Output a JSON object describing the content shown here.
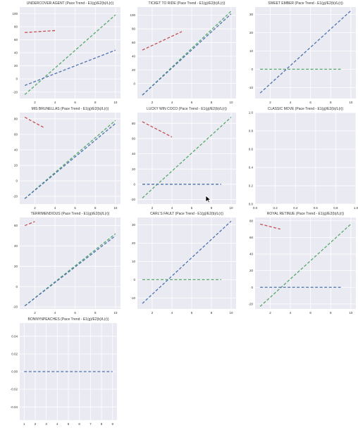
{
  "chart_data": [
    {
      "type": "line",
      "title": "UNDERCOVER AGENT (Pace Trend - E1(g)/E2(b)/L(r))",
      "xlim": [
        0.5,
        10.5
      ],
      "ylim": [
        -30,
        110
      ],
      "xticks": [
        "2",
        "4",
        "6",
        "8",
        "10"
      ],
      "yticks": [
        "-20",
        "0",
        "20",
        "40",
        "60",
        "80",
        "100"
      ],
      "series": [
        {
          "color": "#c44e52",
          "x": [
            1,
            4
          ],
          "y": [
            71,
            74
          ]
        },
        {
          "color": "#55a868",
          "x": [
            1,
            10
          ],
          "y": [
            -24,
            98
          ]
        },
        {
          "color": "#4c72b0",
          "x": [
            1,
            10
          ],
          "y": [
            -10,
            44
          ]
        }
      ]
    },
    {
      "type": "line",
      "title": "TICKET TO RIDE (Pace Trend - E1(g)/E2(b)/L(r))",
      "xlim": [
        0.5,
        10.5
      ],
      "ylim": [
        -22,
        112
      ],
      "xticks": [
        "2",
        "4",
        "6",
        "8",
        "10"
      ],
      "yticks": [
        "0",
        "20",
        "40",
        "60",
        "80",
        "100"
      ],
      "series": [
        {
          "color": "#c44e52",
          "x": [
            1,
            5
          ],
          "y": [
            49,
            76
          ]
        },
        {
          "color": "#55a868",
          "x": [
            1,
            10
          ],
          "y": [
            -17,
            106
          ]
        },
        {
          "color": "#4c72b0",
          "x": [
            1,
            10
          ],
          "y": [
            -17,
            102
          ]
        }
      ]
    },
    {
      "type": "line",
      "title": "SWEET EMBER (Pace Trend - E1(g)/E2(b)/L(r))",
      "xlim": [
        0.5,
        10.5
      ],
      "ylim": [
        -16,
        34
      ],
      "xticks": [
        "2",
        "4",
        "6",
        "8",
        "10"
      ],
      "yticks": [
        "-10",
        "0",
        "10",
        "20",
        "30"
      ],
      "series": [
        {
          "color": "#55a868",
          "x": [
            1,
            9
          ],
          "y": [
            0,
            0
          ]
        },
        {
          "color": "#4c72b0",
          "x": [
            1,
            10
          ],
          "y": [
            -13,
            32
          ]
        }
      ]
    },
    {
      "type": "line",
      "title": "MIS BRUNELLAS (Pace Trend - E1(g)/E2(b)/L(r))",
      "xlim": [
        0.5,
        10.5
      ],
      "ylim": [
        -30,
        88
      ],
      "xticks": [
        "2",
        "4",
        "6",
        "8",
        "10"
      ],
      "yticks": [
        "-20",
        "0",
        "20",
        "40",
        "60",
        "80"
      ],
      "series": [
        {
          "color": "#c44e52",
          "x": [
            1,
            3
          ],
          "y": [
            82,
            68
          ]
        },
        {
          "color": "#55a868",
          "x": [
            1,
            10
          ],
          "y": [
            -23,
            78
          ]
        },
        {
          "color": "#4c72b0",
          "x": [
            1,
            10
          ],
          "y": [
            -23,
            74
          ]
        }
      ]
    },
    {
      "type": "line",
      "title": "LUCKY WIN COCO (Pace Trend - E1(g)/E2(b)/L(r))",
      "xlim": [
        0.5,
        10.5
      ],
      "ylim": [
        -26,
        94
      ],
      "xticks": [
        "2",
        "4",
        "6",
        "8",
        "10"
      ],
      "yticks": [
        "-20",
        "0",
        "20",
        "40",
        "60",
        "80"
      ],
      "series": [
        {
          "color": "#c44e52",
          "x": [
            1,
            4
          ],
          "y": [
            82,
            62
          ]
        },
        {
          "color": "#55a868",
          "x": [
            1,
            10
          ],
          "y": [
            -18,
            88
          ]
        },
        {
          "color": "#4c72b0",
          "x": [
            1,
            9
          ],
          "y": [
            0,
            0
          ]
        }
      ]
    },
    {
      "type": "line",
      "title": "CLASSIC MOVE (Pace Trend - E1(g)/E2(b)/L(r))",
      "xlim": [
        0,
        1
      ],
      "ylim": [
        0,
        1
      ],
      "xticks": [
        "0.0",
        "0.2",
        "0.4",
        "0.6",
        "0.8",
        "1.0"
      ],
      "yticks": [
        "0.0",
        "0.2",
        "0.4",
        "0.6",
        "0.8",
        "1.0"
      ],
      "series": []
    },
    {
      "type": "line",
      "title": "TERRIMENDIOUS (Pace Trend - E1(g)/E2(b)/L(r))",
      "xlim": [
        0.5,
        10.5
      ],
      "ylim": [
        -22,
        68
      ],
      "xticks": [
        "2",
        "4",
        "6",
        "8",
        "10"
      ],
      "yticks": [
        "-20",
        "0",
        "20",
        "40",
        "60"
      ],
      "series": [
        {
          "color": "#c44e52",
          "x": [
            1,
            2
          ],
          "y": [
            60,
            64
          ]
        },
        {
          "color": "#55a868",
          "x": [
            1,
            10
          ],
          "y": [
            -19,
            52
          ]
        },
        {
          "color": "#4c72b0",
          "x": [
            1,
            10
          ],
          "y": [
            -19,
            50
          ]
        }
      ]
    },
    {
      "type": "line",
      "title": "CARL'S FAULT (Pace Trend - E1(g)/E2(b)/L(r))",
      "xlim": [
        0.5,
        10.5
      ],
      "ylim": [
        -16,
        34
      ],
      "xticks": [
        "2",
        "4",
        "6",
        "8",
        "10"
      ],
      "yticks": [
        "-10",
        "0",
        "10",
        "20",
        "30"
      ],
      "series": [
        {
          "color": "#55a868",
          "x": [
            1,
            9
          ],
          "y": [
            0,
            0
          ]
        },
        {
          "color": "#4c72b0",
          "x": [
            1,
            10
          ],
          "y": [
            -13,
            32
          ]
        }
      ]
    },
    {
      "type": "line",
      "title": "ROYAL RETINUE (Pace Trend - E1(g)/E2(b)/L(r))",
      "xlim": [
        0.5,
        10.5
      ],
      "ylim": [
        -26,
        84
      ],
      "xticks": [
        "2",
        "4",
        "6",
        "8",
        "10"
      ],
      "yticks": [
        "-20",
        "0",
        "20",
        "40",
        "60",
        "80"
      ],
      "series": [
        {
          "color": "#c44e52",
          "x": [
            1,
            3
          ],
          "y": [
            76,
            70
          ]
        },
        {
          "color": "#55a868",
          "x": [
            1,
            10
          ],
          "y": [
            -23,
            76
          ]
        },
        {
          "color": "#4c72b0",
          "x": [
            1,
            9
          ],
          "y": [
            0,
            0
          ]
        }
      ]
    },
    {
      "type": "line",
      "title": "BONNYNPEACHES (Pace Trend - E1(g)/E2(b)/L(r))",
      "xlim": [
        0.6,
        9.4
      ],
      "ylim": [
        -0.055,
        0.055
      ],
      "xticks": [
        "1",
        "2",
        "3",
        "4",
        "5",
        "6",
        "7",
        "8",
        "9"
      ],
      "yticks": [
        "-0.04",
        "-0.02",
        "0.00",
        "0.02",
        "0.04"
      ],
      "series": [
        {
          "color": "#4c72b0",
          "x": [
            1,
            9
          ],
          "y": [
            0,
            0
          ]
        }
      ]
    }
  ],
  "style": {
    "plot_bg": "#eaeaf2",
    "grid_color": "#ffffff",
    "tick_color": "#333333"
  }
}
